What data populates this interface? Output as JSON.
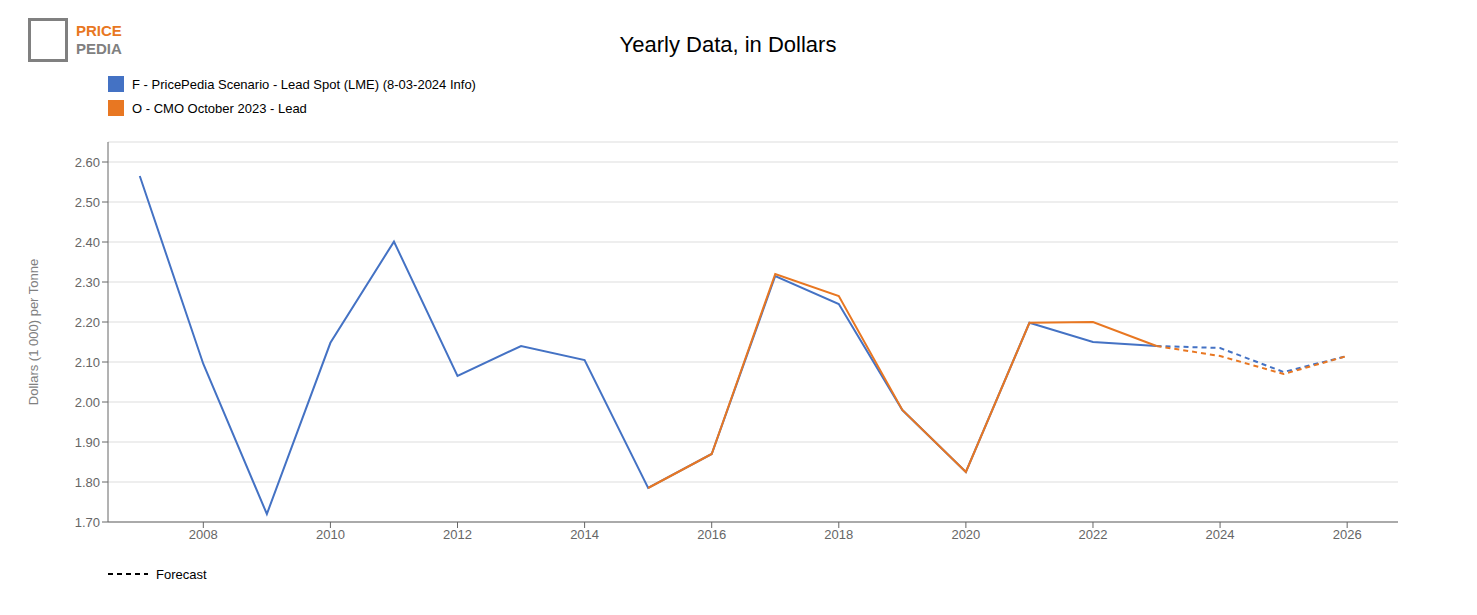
{
  "chart_data": {
    "type": "line",
    "title": "Yearly Data, in Dollars",
    "y_label": "Dollars (1 000) per Tonne",
    "series": [
      {
        "name": "F - PricePedia Scenario - Lead Spot (LME) (8-03-2024 Info)",
        "color": "#4472C4",
        "line_style": "solid",
        "x": [
          2007,
          2008,
          2009,
          2010,
          2011,
          2012,
          2013,
          2014,
          2015,
          2016,
          2017,
          2018,
          2019,
          2020,
          2021,
          2022,
          2023
        ],
        "values": [
          2.565,
          2.095,
          1.72,
          2.148,
          2.401,
          2.065,
          2.14,
          2.105,
          1.785,
          1.87,
          2.315,
          2.245,
          1.98,
          1.825,
          2.198,
          2.15,
          2.14
        ]
      },
      {
        "name": "Forecast",
        "color": "#4472C4",
        "line_style": "dashed",
        "x": [
          2023,
          2024,
          2025,
          2026
        ],
        "values": [
          2.14,
          2.135,
          2.075,
          2.115
        ]
      },
      {
        "name": "O - CMO October 2023 - Lead",
        "color": "#E87722",
        "line_style": "solid",
        "x": [
          2015,
          2016,
          2017,
          2018,
          2019,
          2020,
          2021,
          2022,
          2023
        ],
        "values": [
          1.785,
          1.87,
          2.32,
          2.265,
          1.98,
          1.825,
          2.198,
          2.2,
          2.14
        ]
      },
      {
        "name": "Forecast",
        "color": "#E87722",
        "line_style": "dashed",
        "x": [
          2023,
          2024,
          2025,
          2026
        ],
        "values": [
          2.14,
          2.115,
          2.07,
          2.115
        ]
      }
    ],
    "xlim": [
      2006.5,
      2026.8
    ],
    "xticks": [
      2008,
      2010,
      2012,
      2014,
      2016,
      2018,
      2020,
      2022,
      2024,
      2026
    ],
    "ylim": [
      1.7,
      2.65
    ],
    "yticks": [
      {
        "value": 1.7,
        "label": "1.70"
      },
      {
        "value": 1.8,
        "label": "1.80"
      },
      {
        "value": 1.9,
        "label": "1.90"
      },
      {
        "value": 2.0,
        "label": "2.00"
      },
      {
        "value": 2.1,
        "label": "2.10"
      },
      {
        "value": 2.2,
        "label": "2.20"
      },
      {
        "value": 2.3,
        "label": "2.30"
      },
      {
        "value": 2.4,
        "label": "2.40"
      },
      {
        "value": 2.5,
        "label": "2.50"
      },
      {
        "value": 2.6,
        "label": "2.60"
      }
    ],
    "grid": true,
    "annotations": [
      {
        "text": "PRICE",
        "color": "#E87722"
      },
      {
        "text": "PEDIA",
        "color": "#808080"
      }
    ]
  }
}
